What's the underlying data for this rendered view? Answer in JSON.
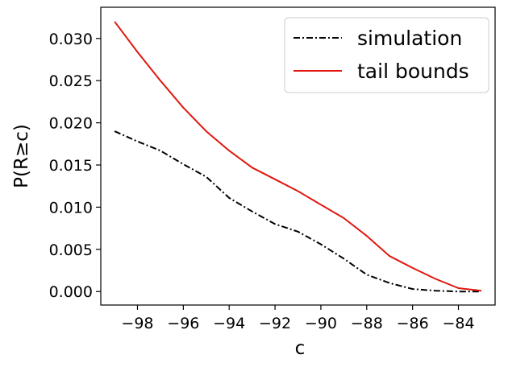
{
  "chart_data": {
    "type": "line",
    "xlabel": "c",
    "ylabel": "P(R≥c)",
    "xlim": [
      -99.6,
      -82.4
    ],
    "ylim": [
      -0.0016,
      0.0337
    ],
    "xticks": [
      -98,
      -96,
      -94,
      -92,
      -90,
      -88,
      -86,
      -84
    ],
    "xtick_labels": [
      "−98",
      "−96",
      "−94",
      "−92",
      "−90",
      "−88",
      "−86",
      "−84"
    ],
    "yticks": [
      0.0,
      0.005,
      0.01,
      0.015,
      0.02,
      0.025,
      0.03
    ],
    "ytick_labels": [
      "0.000",
      "0.005",
      "0.010",
      "0.015",
      "0.020",
      "0.025",
      "0.030"
    ],
    "grid": false,
    "legend_position": "top-right",
    "x": [
      -99,
      -98,
      -97,
      -96,
      -95,
      -94,
      -93,
      -92,
      -91,
      -90,
      -89,
      -88,
      -87,
      -86,
      -85,
      -84,
      -83
    ],
    "series": [
      {
        "name": "simulation",
        "color": "#000000",
        "style": "dashdot",
        "values": [
          0.019,
          0.0178,
          0.0167,
          0.0151,
          0.0136,
          0.0111,
          0.0095,
          0.008,
          0.0071,
          0.0056,
          0.0039,
          0.002,
          0.001,
          0.0003,
          0.0001,
          0.0,
          0.0
        ]
      },
      {
        "name": "tail bounds",
        "color": "#e0180e",
        "style": "solid",
        "values": [
          0.032,
          0.0284,
          0.025,
          0.0218,
          0.019,
          0.0167,
          0.0147,
          0.0133,
          0.0119,
          0.0103,
          0.0087,
          0.0066,
          0.0042,
          0.0028,
          0.0015,
          0.0004,
          0.0001
        ]
      }
    ]
  }
}
